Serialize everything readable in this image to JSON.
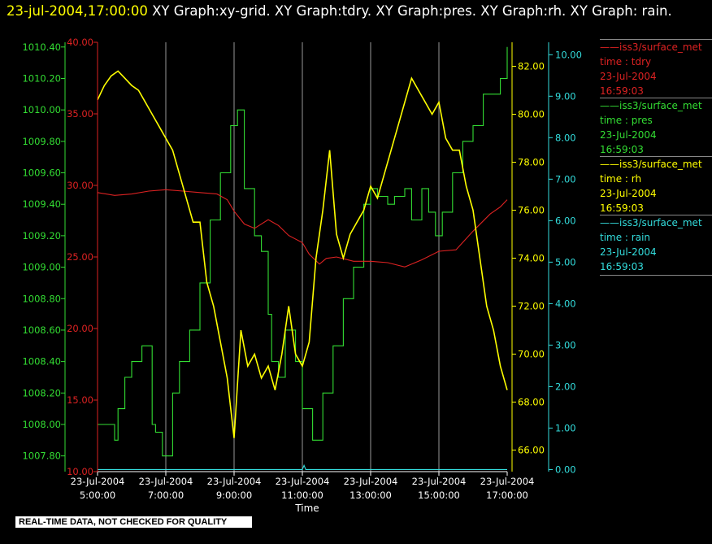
{
  "header": {
    "timestamp": "23-jul-2004,17:00:00",
    "graphs_text": " XY Graph:xy-grid.  XY Graph:tdry.  XY Graph:pres.  XY Graph:rh.  XY Graph: rain."
  },
  "footer": {
    "note": "REAL-TIME DATA, NOT CHECKED FOR QUALITY"
  },
  "colors": {
    "tdry": "#dd2222",
    "pres": "#33dd33",
    "rh": "#ffff00",
    "rain": "#33dddd",
    "grid": "#ffffff"
  },
  "legend": [
    {
      "line1": "iss3/surface_met",
      "line2": "time : tdry",
      "line3": "23-Jul-2004",
      "line4": "16:59:03",
      "color": "#dd2222"
    },
    {
      "line1": "iss3/surface_met",
      "line2": "time : pres",
      "line3": "23-Jul-2004",
      "line4": "16:59:03",
      "color": "#33dd33"
    },
    {
      "line1": "iss3/surface_met",
      "line2": "time : rh",
      "line3": "23-Jul-2004",
      "line4": "16:59:03",
      "color": "#ffff00"
    },
    {
      "line1": "iss3/surface_met",
      "line2": "time : rain",
      "line3": "23-Jul-2004",
      "line4": "16:59:03",
      "color": "#33dddd"
    }
  ],
  "chart_data": {
    "type": "line",
    "xlabel": "Time",
    "x_ticks": [
      {
        "date": "23-Jul-2004",
        "time": "5:00:00",
        "hour": 5
      },
      {
        "date": "23-Jul-2004",
        "time": "7:00:00",
        "hour": 7
      },
      {
        "date": "23-Jul-2004",
        "time": "9:00:00",
        "hour": 9
      },
      {
        "date": "23-Jul-2004",
        "time": "11:00:00",
        "hour": 11
      },
      {
        "date": "23-Jul-2004",
        "time": "13:00:00",
        "hour": 13
      },
      {
        "date": "23-Jul-2004",
        "time": "15:00:00",
        "hour": 15
      },
      {
        "date": "23-Jul-2004",
        "time": "17:00:00",
        "hour": 17
      }
    ],
    "xlim_hours": [
      5,
      17
    ],
    "grid": "vertical lines at each x tick",
    "axes": {
      "pres": {
        "ylim": [
          1007.7,
          1010.43
        ],
        "ticks": [
          "1007.80",
          "1008.00",
          "1008.20",
          "1008.40",
          "1008.60",
          "1008.80",
          "1009.00",
          "1009.20",
          "1009.40",
          "1009.60",
          "1009.80",
          "1010.00",
          "1010.20",
          "1010.40"
        ]
      },
      "tdry": {
        "ylim": [
          10,
          40
        ],
        "ticks": [
          "10.00",
          "15.00",
          "20.00",
          "25.00",
          "30.00",
          "35.00",
          "40.00"
        ]
      },
      "rh": {
        "ylim": [
          65.1,
          83
        ],
        "ticks": [
          "66.00",
          "68.00",
          "70.00",
          "72.00",
          "74.00",
          "76.00",
          "78.00",
          "80.00",
          "82.00"
        ]
      },
      "rain": {
        "ylim": [
          -0.05,
          10.3
        ],
        "ticks": [
          "0.00",
          "1.00",
          "2.00",
          "3.00",
          "4.00",
          "5.00",
          "6.00",
          "7.00",
          "8.00",
          "9.00",
          "10.00"
        ]
      }
    },
    "series": [
      {
        "name": "time : tdry",
        "axis": "tdry",
        "x": [
          5.0,
          5.5,
          6.0,
          6.5,
          7.0,
          7.5,
          8.0,
          8.5,
          8.8,
          9.0,
          9.3,
          9.6,
          10.0,
          10.3,
          10.6,
          11.0,
          11.2,
          11.5,
          11.7,
          12.0,
          12.5,
          13.0,
          13.5,
          14.0,
          14.5,
          15.0,
          15.5,
          16.0,
          16.5,
          16.8,
          17.0
        ],
        "y": [
          29.5,
          29.3,
          29.4,
          29.6,
          29.7,
          29.6,
          29.5,
          29.4,
          29.0,
          28.2,
          27.3,
          27.0,
          27.6,
          27.2,
          26.5,
          26.0,
          25.2,
          24.5,
          24.9,
          25.0,
          24.7,
          24.7,
          24.6,
          24.3,
          24.8,
          25.4,
          25.5,
          26.8,
          28.0,
          28.5,
          29.0
        ]
      },
      {
        "name": "time : pres",
        "axis": "pres",
        "x": [
          5.0,
          5.4,
          5.5,
          5.6,
          5.8,
          6.0,
          6.3,
          6.6,
          6.7,
          6.9,
          7.2,
          7.4,
          7.7,
          8.0,
          8.3,
          8.6,
          8.9,
          9.1,
          9.3,
          9.6,
          9.8,
          10.0,
          10.1,
          10.3,
          10.5,
          10.8,
          11.0,
          11.3,
          11.6,
          11.9,
          12.2,
          12.5,
          12.8,
          13.0,
          13.2,
          13.5,
          13.7,
          14.0,
          14.2,
          14.5,
          14.7,
          14.9,
          15.1,
          15.4,
          15.7,
          16.0,
          16.3,
          16.6,
          16.8,
          17.0
        ],
        "y": [
          1008.0,
          1008.0,
          1007.9,
          1008.1,
          1008.3,
          1008.4,
          1008.5,
          1008.0,
          1007.95,
          1007.8,
          1008.2,
          1008.4,
          1008.6,
          1008.9,
          1009.3,
          1009.6,
          1009.9,
          1010.0,
          1009.5,
          1009.2,
          1009.1,
          1008.7,
          1008.4,
          1008.3,
          1008.6,
          1008.4,
          1008.1,
          1007.9,
          1008.2,
          1008.5,
          1008.8,
          1009.0,
          1009.4,
          1009.5,
          1009.45,
          1009.4,
          1009.45,
          1009.5,
          1009.3,
          1009.5,
          1009.35,
          1009.2,
          1009.35,
          1009.6,
          1009.8,
          1009.9,
          1010.1,
          1010.1,
          1010.2,
          1010.4
        ]
      },
      {
        "name": "time : rh",
        "axis": "rh",
        "x": [
          5.0,
          5.2,
          5.4,
          5.6,
          5.8,
          6.0,
          6.2,
          6.4,
          6.6,
          6.8,
          7.0,
          7.2,
          7.4,
          7.6,
          7.8,
          8.0,
          8.2,
          8.4,
          8.6,
          8.8,
          9.0,
          9.2,
          9.4,
          9.6,
          9.8,
          10.0,
          10.2,
          10.4,
          10.6,
          10.8,
          11.0,
          11.2,
          11.4,
          11.6,
          11.8,
          12.0,
          12.2,
          12.4,
          12.6,
          12.8,
          13.0,
          13.2,
          13.4,
          13.6,
          13.8,
          14.0,
          14.2,
          14.4,
          14.6,
          14.8,
          15.0,
          15.2,
          15.4,
          15.6,
          15.8,
          16.0,
          16.2,
          16.4,
          16.6,
          16.8,
          17.0
        ],
        "y": [
          80.6,
          81.2,
          81.6,
          81.8,
          81.5,
          81.2,
          81.0,
          80.5,
          80.0,
          79.5,
          79.0,
          78.5,
          77.5,
          76.5,
          75.5,
          75.5,
          73.0,
          72.0,
          70.5,
          69.0,
          66.5,
          71.0,
          69.5,
          70.0,
          69.0,
          69.5,
          68.5,
          70.0,
          72.0,
          70.0,
          69.5,
          70.5,
          74.0,
          76.0,
          78.5,
          75.0,
          74.0,
          75.0,
          75.5,
          76.0,
          77.0,
          76.5,
          77.5,
          78.5,
          79.5,
          80.5,
          81.5,
          81.0,
          80.5,
          80.0,
          80.5,
          79.0,
          78.5,
          78.5,
          77.0,
          76.0,
          74.0,
          72.0,
          71.0,
          69.5,
          68.5
        ]
      },
      {
        "name": "time : rain",
        "axis": "rain",
        "x": [
          5.0,
          11.0,
          11.05,
          11.1,
          17.0
        ],
        "y": [
          0.0,
          0.0,
          0.1,
          0.0,
          0.0
        ]
      }
    ]
  }
}
